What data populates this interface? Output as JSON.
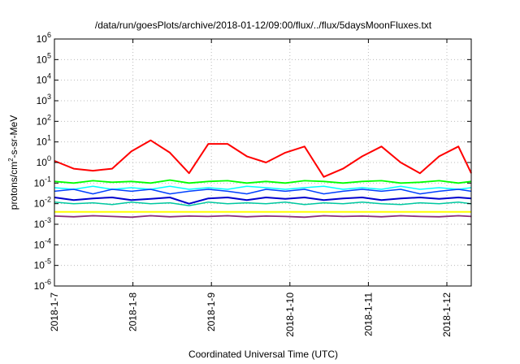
{
  "chart_data": {
    "type": "line",
    "title": "/data/run/goesPlots/archive/2018-01-12/09:00/flux/../flux/5daysMoonFluxes.txt",
    "xlabel": "Coordinated Universal Time (UTC)",
    "ylabel": {
      "base": "protons/cm",
      "sup": "2",
      "rest": "-s-sr-MeV"
    },
    "yscale": "log",
    "ylim": [
      1e-06,
      1000000.0
    ],
    "xlim": [
      "2018-01-07T00:00",
      "2018-01-12T10:00"
    ],
    "grid": true,
    "legend": "none",
    "x_ticks": [
      "2018-1-7",
      "2018-1-8",
      "2018-1-9",
      "2018-1-10",
      "2018-1-11",
      "2018-1-12"
    ],
    "y_ticks": [
      {
        "base": "10",
        "exp": "-6"
      },
      {
        "base": "10",
        "exp": "-5"
      },
      {
        "base": "10",
        "exp": "-4"
      },
      {
        "base": "10",
        "exp": "-3"
      },
      {
        "base": "10",
        "exp": "-2"
      },
      {
        "base": "10",
        "exp": "-1"
      },
      {
        "base": "10",
        "exp": "0"
      },
      {
        "base": "10",
        "exp": "1"
      },
      {
        "base": "10",
        "exp": "2"
      },
      {
        "base": "10",
        "exp": "3"
      },
      {
        "base": "10",
        "exp": "4"
      },
      {
        "base": "10",
        "exp": "5"
      },
      {
        "base": "10",
        "exp": "6"
      }
    ],
    "x": [
      "2018-01-07T00:00",
      "2018-01-07T06:00",
      "2018-01-07T12:00",
      "2018-01-07T18:00",
      "2018-01-08T00:00",
      "2018-01-08T06:00",
      "2018-01-08T12:00",
      "2018-01-08T18:00",
      "2018-01-09T00:00",
      "2018-01-09T06:00",
      "2018-01-09T12:00",
      "2018-01-09T18:00",
      "2018-01-10T00:00",
      "2018-01-10T06:00",
      "2018-01-10T12:00",
      "2018-01-10T18:00",
      "2018-01-11T00:00",
      "2018-01-11T06:00",
      "2018-01-11T12:00",
      "2018-01-11T18:00",
      "2018-01-12T00:00",
      "2018-01-12T06:00",
      "2018-01-12T10:00"
    ],
    "series": [
      {
        "color": "#ff0000",
        "width": 2,
        "values": [
          1.2,
          0.5,
          0.4,
          0.5,
          3.5,
          12,
          3,
          0.3,
          8,
          8,
          2,
          1,
          3,
          6,
          0.2,
          0.5,
          2,
          6,
          1,
          0.3,
          2,
          6,
          0.3
        ]
      },
      {
        "color": "#00ff00",
        "width": 1.8,
        "values": [
          0.12,
          0.1,
          0.13,
          0.11,
          0.12,
          0.1,
          0.14,
          0.1,
          0.12,
          0.13,
          0.1,
          0.12,
          0.1,
          0.13,
          0.12,
          0.1,
          0.12,
          0.13,
          0.1,
          0.11,
          0.13,
          0.1,
          0.12
        ]
      },
      {
        "color": "#00ffff",
        "width": 1.5,
        "values": [
          0.06,
          0.05,
          0.07,
          0.05,
          0.06,
          0.05,
          0.07,
          0.05,
          0.06,
          0.05,
          0.07,
          0.06,
          0.05,
          0.06,
          0.07,
          0.05,
          0.06,
          0.05,
          0.07,
          0.05,
          0.06,
          0.05,
          0.06
        ]
      },
      {
        "color": "#0040ff",
        "width": 1.5,
        "values": [
          0.04,
          0.05,
          0.03,
          0.05,
          0.04,
          0.05,
          0.03,
          0.04,
          0.05,
          0.04,
          0.03,
          0.05,
          0.04,
          0.05,
          0.03,
          0.04,
          0.05,
          0.04,
          0.05,
          0.03,
          0.04,
          0.05,
          0.04
        ]
      },
      {
        "color": "#0000cc",
        "width": 2,
        "values": [
          0.02,
          0.015,
          0.018,
          0.02,
          0.015,
          0.017,
          0.02,
          0.01,
          0.018,
          0.02,
          0.015,
          0.02,
          0.017,
          0.02,
          0.015,
          0.018,
          0.02,
          0.015,
          0.018,
          0.02,
          0.017,
          0.02,
          0.018
        ]
      },
      {
        "color": "#00c8a0",
        "width": 1.5,
        "values": [
          0.012,
          0.01,
          0.011,
          0.009,
          0.012,
          0.01,
          0.011,
          0.008,
          0.012,
          0.01,
          0.011,
          0.01,
          0.012,
          0.009,
          0.011,
          0.01,
          0.012,
          0.01,
          0.009,
          0.011,
          0.01,
          0.012,
          0.01
        ]
      },
      {
        "color": "#ffff00",
        "width": 2,
        "values": [
          0.004,
          0.004,
          0.004,
          0.004,
          0.004,
          0.004,
          0.004,
          0.004,
          0.004,
          0.004,
          0.004,
          0.004,
          0.004,
          0.004,
          0.004,
          0.004,
          0.004,
          0.004,
          0.004,
          0.004,
          0.004,
          0.004,
          0.004
        ]
      },
      {
        "color": "#8b2e7a",
        "width": 1.8,
        "values": [
          0.0025,
          0.0023,
          0.0026,
          0.0024,
          0.0022,
          0.0026,
          0.0023,
          0.0025,
          0.0024,
          0.0026,
          0.0023,
          0.0025,
          0.0024,
          0.0022,
          0.0026,
          0.0024,
          0.0025,
          0.0023,
          0.0026,
          0.0024,
          0.0023,
          0.0026,
          0.0024
        ]
      }
    ]
  }
}
